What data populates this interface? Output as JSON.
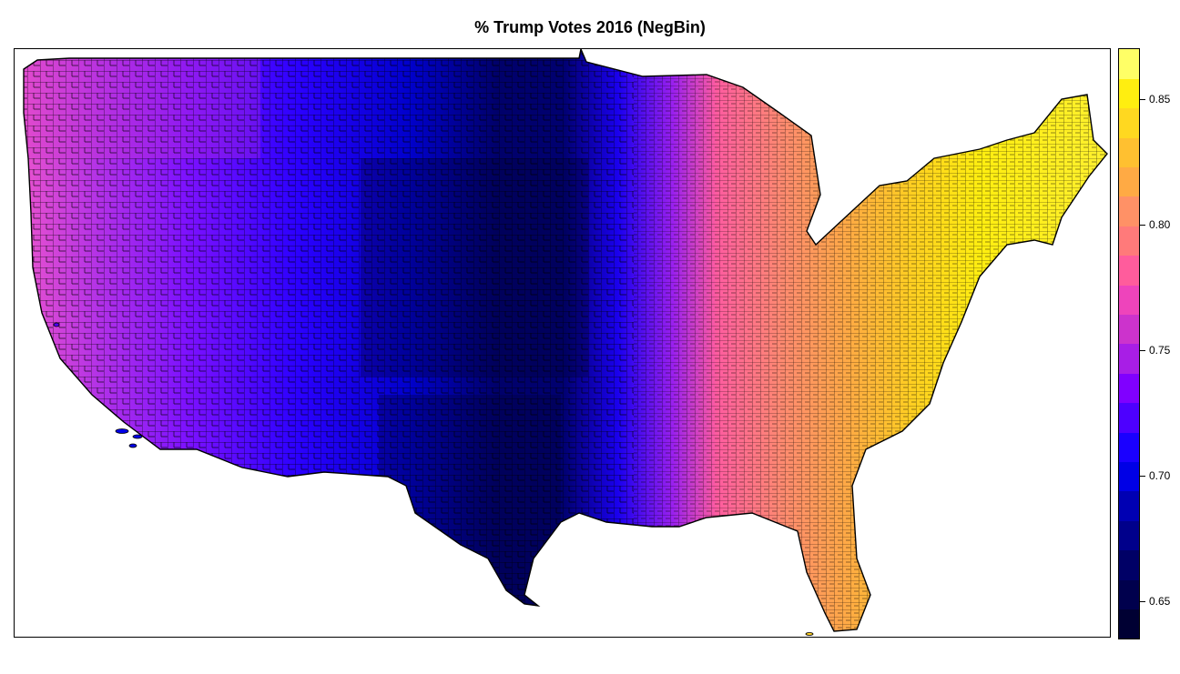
{
  "title": "% Trump Votes 2016 (NegBin)",
  "legend": {
    "min": 0.635,
    "max": 0.87,
    "ticks": [
      "0.65",
      "0.70",
      "0.75",
      "0.80",
      "0.85"
    ],
    "tick_values": [
      0.65,
      0.7,
      0.75,
      0.8,
      0.85
    ],
    "colors": [
      "#000033",
      "#00004d",
      "#000066",
      "#00008b",
      "#0000b3",
      "#0000e6",
      "#1a00ff",
      "#4d00ff",
      "#8000ff",
      "#a81ee6",
      "#cc33cc",
      "#ee44bb",
      "#ff5c9c",
      "#ff7a7a",
      "#ff9166",
      "#ffaa44",
      "#ffc030",
      "#ffd820",
      "#ffee10",
      "#ffff66"
    ]
  },
  "map": {
    "region": "contiguous-united-states",
    "layer": "counties",
    "gradient": {
      "west-coast": "#cc33cc",
      "mountain-west": "#4d00ff",
      "great-plains": "#000066",
      "midwest": "#ff5c9c",
      "southeast": "#ffc030",
      "northeast": "#ffee10"
    }
  }
}
